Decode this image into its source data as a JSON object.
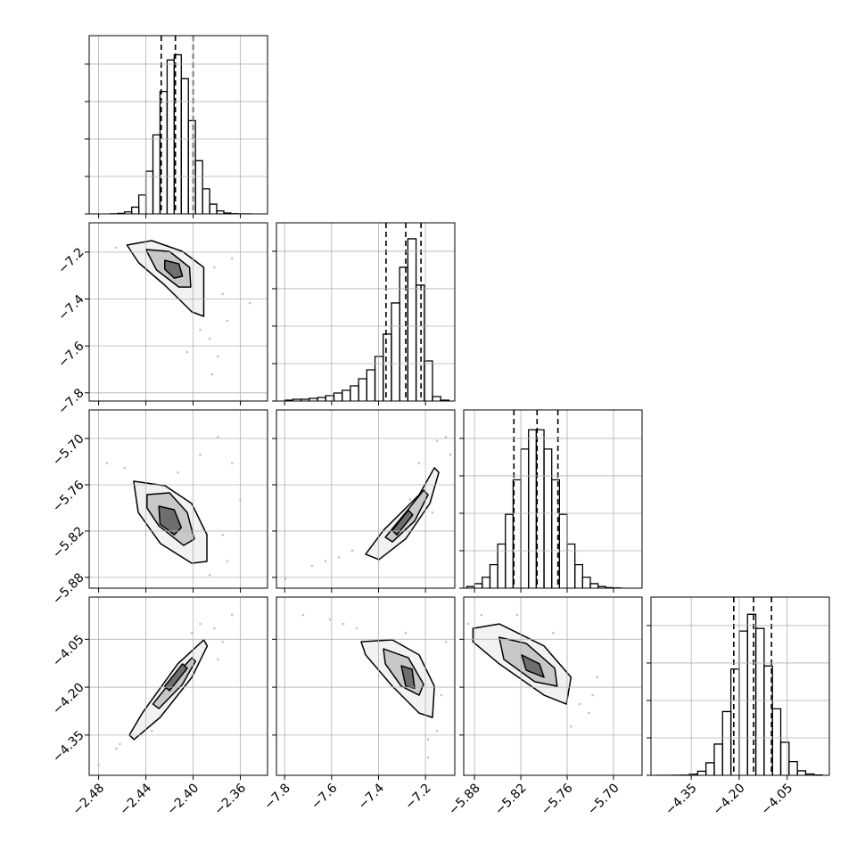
{
  "chart_data": {
    "type": "corner",
    "grid": true,
    "grid_color": "#b0b0b0",
    "line_color": "#000000",
    "point_color": "#999999",
    "hist_ylim": [
      0,
      4760
    ],
    "hist_yticks": [
      0,
      1000,
      2000,
      3000,
      4000
    ],
    "parameters": [
      {
        "range": [
          -2.488,
          -2.337
        ],
        "ticks": [
          {
            "value": -2.48,
            "label": "−2.48"
          },
          {
            "value": -2.44,
            "label": "−2.44"
          },
          {
            "value": -2.4,
            "label": "−2.40"
          },
          {
            "value": -2.36,
            "label": "−2.36"
          }
        ],
        "quantiles": [
          -2.427,
          -2.415,
          -2.4
        ],
        "bins": [
          -2.47,
          -2.464,
          -2.458,
          -2.452,
          -2.446,
          -2.44,
          -2.434,
          -2.428,
          -2.422,
          -2.416,
          -2.41,
          -2.404,
          -2.398,
          -2.392,
          -2.386,
          -2.38,
          -2.374,
          -2.368,
          -2.362,
          -2.356,
          -2.35
        ],
        "counts": [
          3,
          13,
          54,
          180,
          503,
          1140,
          2110,
          3270,
          4110,
          4250,
          3610,
          2490,
          1420,
          670,
          260,
          80,
          22,
          5,
          0,
          0
        ]
      },
      {
        "range": [
          -7.835,
          -7.075
        ],
        "ticks": [
          {
            "value": -7.8,
            "label": "−7.8"
          },
          {
            "value": -7.6,
            "label": "−7.6"
          },
          {
            "value": -7.4,
            "label": "−7.4"
          },
          {
            "value": -7.2,
            "label": "−7.2"
          }
        ],
        "quantiles": [
          -7.368,
          -7.284,
          -7.219
        ],
        "bins": [
          -7.8,
          -7.765,
          -7.73,
          -7.695,
          -7.66,
          -7.625,
          -7.59,
          -7.555,
          -7.52,
          -7.485,
          -7.45,
          -7.415,
          -7.38,
          -7.345,
          -7.31,
          -7.275,
          -7.24,
          -7.205,
          -7.17,
          -7.135,
          -7.1
        ],
        "counts": [
          24,
          48,
          48,
          71,
          95,
          143,
          214,
          286,
          405,
          595,
          833,
          1190,
          1786,
          2619,
          3571,
          4333,
          3095,
          1071,
          119,
          24
        ]
      },
      {
        "range": [
          -5.894,
          -5.663
        ],
        "ticks": [
          {
            "value": -5.88,
            "label": "−5.88"
          },
          {
            "value": -5.82,
            "label": "−5.82"
          },
          {
            "value": -5.76,
            "label": "−5.76"
          },
          {
            "value": -5.7,
            "label": "−5.70"
          }
        ],
        "quantiles": [
          -5.829,
          -5.799,
          -5.772
        ],
        "bins": [
          -5.89,
          -5.88,
          -5.87,
          -5.86,
          -5.85,
          -5.84,
          -5.83,
          -5.82,
          -5.81,
          -5.8,
          -5.79,
          -5.78,
          -5.77,
          -5.76,
          -5.75,
          -5.74,
          -5.73,
          -5.72,
          -5.71,
          -5.7,
          -5.69
        ],
        "counts": [
          43,
          120,
          292,
          628,
          1178,
          1969,
          2894,
          3715,
          4231,
          4231,
          3715,
          2894,
          1969,
          1178,
          628,
          292,
          120,
          43,
          13,
          4
        ]
      },
      {
        "range": [
          -4.476,
          -3.918
        ],
        "ticks": [
          {
            "value": -4.35,
            "label": "−4.35"
          },
          {
            "value": -4.2,
            "label": "−4.20"
          },
          {
            "value": -4.05,
            "label": "−4.05"
          }
        ],
        "quantiles": [
          -4.217,
          -4.155,
          -4.099
        ],
        "bins": [
          -4.46,
          -4.434,
          -4.408,
          -4.382,
          -4.356,
          -4.33,
          -4.304,
          -4.278,
          -4.252,
          -4.226,
          -4.2,
          -4.174,
          -4.148,
          -4.122,
          -4.096,
          -4.07,
          -4.044,
          -4.018,
          -3.992,
          -3.966,
          -3.94
        ],
        "counts": [
          0,
          0,
          1,
          6,
          30,
          108,
          335,
          834,
          1703,
          2838,
          3853,
          4300,
          3922,
          2920,
          1776,
          882,
          366,
          120,
          34,
          9
        ]
      }
    ],
    "pairs": [
      {
        "x": [
          -2.382,
          -2.375,
          -2.386,
          -2.379,
          -2.394,
          -2.465,
          -2.367,
          -2.405,
          -2.352,
          -2.384,
          -2.435,
          -2.371
        ],
        "y": [
          -7.265,
          -7.379,
          -7.569,
          -7.645,
          -7.531,
          -7.181,
          -7.227,
          -7.626,
          -7.417,
          -7.721,
          -7.265,
          -7.493
        ],
        "contours": [
          {
            "fill": "#f2f2f2",
            "x": [
              -2.456,
              -2.435,
              -2.409,
              -2.391,
              -2.391,
              -2.401,
              -2.424,
              -2.446
            ],
            "y": [
              -7.17,
              -7.151,
              -7.197,
              -7.265,
              -7.474,
              -7.455,
              -7.341,
              -7.246
            ]
          },
          {
            "fill": "#c8c8c8",
            "x": [
              -2.44,
              -2.42,
              -2.403,
              -2.402,
              -2.412,
              -2.431
            ],
            "y": [
              -7.189,
              -7.197,
              -7.265,
              -7.349,
              -7.349,
              -7.276
            ]
          },
          {
            "fill": "#6e6e6e",
            "x": [
              -2.424,
              -2.412,
              -2.409,
              -2.416,
              -2.424
            ],
            "y": [
              -7.235,
              -7.25,
              -7.303,
              -7.311,
              -7.273
            ]
          }
        ]
      },
      {
        "x": [
          -2.458,
          -2.367,
          -2.375,
          -2.386,
          -2.413,
          -2.36,
          -2.379,
          -2.473,
          -2.394,
          -2.371
        ],
        "y": [
          -5.738,
          -5.732,
          -5.825,
          -5.877,
          -5.744,
          -5.779,
          -5.698,
          -5.732,
          -5.721,
          -5.859
        ],
        "contours": [
          {
            "fill": "#f2f2f2",
            "x": [
              -2.4503,
              -2.4238,
              -2.4012,
              -2.3883,
              -2.3883,
              -2.4012,
              -2.4276,
              -2.4465
            ],
            "y": [
              -5.7554,
              -5.7612,
              -5.7843,
              -5.8247,
              -5.8594,
              -5.8617,
              -5.8363,
              -5.7958
            ]
          },
          {
            "fill": "#c8c8c8",
            "x": [
              -2.439,
              -2.42,
              -2.405,
              -2.399,
              -2.408,
              -2.429,
              -2.439
            ],
            "y": [
              -5.7727,
              -5.7704,
              -5.7958,
              -5.8305,
              -5.8386,
              -5.8132,
              -5.7901
            ]
          },
          {
            "fill": "#6e6e6e",
            "x": [
              -2.429,
              -2.416,
              -2.41,
              -2.416,
              -2.428
            ],
            "y": [
              -5.7877,
              -5.7924,
              -5.8155,
              -5.8247,
              -5.8109
            ]
          }
        ]
      },
      {
        "x": [
          -7.797,
          -7.683,
          -7.569,
          -7.512,
          -7.151,
          -7.113,
          -7.227,
          -7.265,
          -7.417,
          -7.094,
          -7.626,
          -7.17
        ],
        "y": [
          -5.882,
          -5.865,
          -5.854,
          -5.845,
          -5.703,
          -5.698,
          -5.732,
          -5.779,
          -5.848,
          -5.721,
          -5.859,
          -5.796
        ],
        "contours": [
          {
            "fill": "#f2f2f2",
            "x": [
              -7.455,
              -7.379,
              -7.227,
              -7.162,
              -7.143,
              -7.181,
              -7.284,
              -7.398
            ],
            "y": [
              -5.85,
              -5.819,
              -5.773,
              -5.738,
              -5.744,
              -5.784,
              -5.83,
              -5.857
            ]
          },
          {
            "fill": "#c8c8c8",
            "x": [
              -7.371,
              -7.284,
              -7.208,
              -7.189,
              -7.246,
              -7.341
            ],
            "y": [
              -5.828,
              -5.796,
              -5.767,
              -5.773,
              -5.807,
              -5.834
            ]
          },
          {
            "fill": "#6e6e6e",
            "x": [
              -7.341,
              -7.273,
              -7.254,
              -7.322
            ],
            "y": [
              -5.819,
              -5.793,
              -5.799,
              -5.825
            ]
          }
        ]
      },
      {
        "x": [
          -2.48,
          -2.465,
          -2.382,
          -2.367,
          -2.375,
          -2.394,
          -2.435,
          -2.462,
          -2.379,
          -2.401
        ],
        "y": [
          -4.443,
          -4.392,
          -4.016,
          -3.974,
          -4.058,
          -4.002,
          -4.337,
          -4.378,
          -4.113,
          -4.03
        ],
        "contours": [
          {
            "fill": "#f2f2f2",
            "x": [
              -2.454,
              -2.443,
              -2.413,
              -2.391,
              -2.388,
              -2.401,
              -2.428,
              -2.45
            ],
            "y": [
              -4.35,
              -4.281,
              -4.127,
              -4.052,
              -4.071,
              -4.169,
              -4.295,
              -4.364
            ]
          },
          {
            "fill": "#c8c8c8",
            "x": [
              -2.434,
              -2.413,
              -2.401,
              -2.398,
              -2.409,
              -2.429
            ],
            "y": [
              -4.253,
              -4.155,
              -4.108,
              -4.119,
              -4.191,
              -4.267
            ]
          },
          {
            "fill": "#6e6e6e",
            "x": [
              -2.424,
              -2.409,
              -2.405,
              -2.42
            ],
            "y": [
              -4.197,
              -4.127,
              -4.141,
              -4.211
            ]
          }
        ]
      },
      {
        "x": [
          -7.721,
          -7.607,
          -7.493,
          -7.113,
          -7.151,
          -7.189,
          -7.55,
          -7.132,
          -7.284,
          -7.189
        ],
        "y": [
          -3.974,
          -3.988,
          -4.016,
          -4.058,
          -4.337,
          -4.364,
          -4.002,
          -4.225,
          -4.03,
          -4.42
        ],
        "contours": [
          {
            "fill": "#f2f2f2",
            "x": [
              -7.474,
              -7.341,
              -7.227,
              -7.162,
              -7.17,
              -7.227,
              -7.341,
              -7.455
            ],
            "y": [
              -4.058,
              -4.052,
              -4.099,
              -4.197,
              -4.295,
              -4.281,
              -4.197,
              -4.099
            ]
          },
          {
            "fill": "#c8c8c8",
            "x": [
              -7.379,
              -7.273,
              -7.208,
              -7.227,
              -7.303,
              -7.371
            ],
            "y": [
              -4.08,
              -4.108,
              -4.191,
              -4.225,
              -4.197,
              -4.127
            ]
          },
          {
            "fill": "#6e6e6e",
            "x": [
              -7.303,
              -7.257,
              -7.246,
              -7.284
            ],
            "y": [
              -4.133,
              -4.144,
              -4.203,
              -4.197
            ]
          }
        ]
      },
      {
        "x": [
          -5.871,
          -5.865,
          -5.732,
          -5.744,
          -5.727,
          -5.778,
          -5.825,
          -5.755,
          -5.888,
          -5.721
        ],
        "y": [
          -3.974,
          -4.03,
          -4.281,
          -4.253,
          -4.225,
          -4.03,
          -3.974,
          -4.323,
          -4.002,
          -4.169
        ],
        "contours": [
          {
            "fill": "#f2f2f2",
            "x": [
              -5.882,
              -5.848,
              -5.79,
              -5.755,
              -5.761,
              -5.79,
              -5.848,
              -5.882
            ],
            "y": [
              -4.016,
              -4.002,
              -4.071,
              -4.169,
              -4.253,
              -4.225,
              -4.127,
              -4.058
            ]
          },
          {
            "fill": "#c8c8c8",
            "x": [
              -5.848,
              -5.813,
              -5.776,
              -5.773,
              -5.802,
              -5.842
            ],
            "y": [
              -4.044,
              -4.063,
              -4.141,
              -4.197,
              -4.183,
              -4.113
            ]
          },
          {
            "fill": "#6e6e6e",
            "x": [
              -5.819,
              -5.796,
              -5.79,
              -5.813
            ],
            "y": [
              -4.099,
              -4.127,
              -4.169,
              -4.147
            ]
          }
        ]
      }
    ]
  }
}
